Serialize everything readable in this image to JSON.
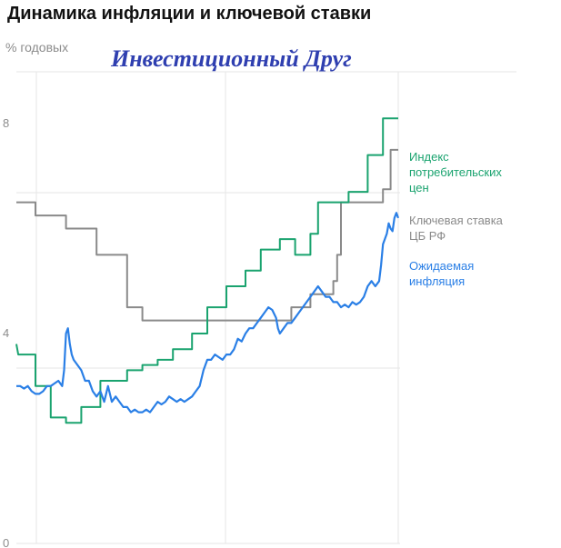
{
  "title": "Динамика инфляции и ключевой ставки",
  "units_label": "% годовых",
  "watermark": "Инвестиционный Друг",
  "colors": {
    "cpi": "#1aa36f",
    "key_rate": "#8a8a8a",
    "expected": "#2a7fe6",
    "grid": "#e6e6e6",
    "tick": "#8c8c8c"
  },
  "chart_data": {
    "type": "line",
    "ylabel": "% годовых",
    "ylim": [
      0,
      10
    ],
    "x_range": [
      0,
      100
    ],
    "yticks": [
      {
        "value": 0,
        "label": "0"
      },
      {
        "value": 4,
        "label": "4"
      },
      {
        "value": 8,
        "label": "8"
      }
    ],
    "grid": true,
    "series": [
      {
        "key": "cpi",
        "name": "Индекс потребительских цен",
        "name_lines": [
          "Индекс",
          "потребительских",
          "цен"
        ],
        "color": "#1aa36f",
        "step": true,
        "points": [
          [
            0,
            3.8
          ],
          [
            0.5,
            3.6
          ],
          [
            5,
            3.6
          ],
          [
            5,
            3.0
          ],
          [
            9,
            3.0
          ],
          [
            9,
            2.4
          ],
          [
            13,
            2.4
          ],
          [
            13,
            2.3
          ],
          [
            17,
            2.3
          ],
          [
            17,
            2.6
          ],
          [
            22,
            2.6
          ],
          [
            22,
            3.1
          ],
          [
            29,
            3.1
          ],
          [
            29,
            3.3
          ],
          [
            33,
            3.3
          ],
          [
            33,
            3.4
          ],
          [
            37,
            3.4
          ],
          [
            37,
            3.5
          ],
          [
            41,
            3.5
          ],
          [
            41,
            3.7
          ],
          [
            46,
            3.7
          ],
          [
            46,
            4.0
          ],
          [
            50,
            4.0
          ],
          [
            50,
            4.5
          ],
          [
            55,
            4.5
          ],
          [
            55,
            4.9
          ],
          [
            60,
            4.9
          ],
          [
            60,
            5.2
          ],
          [
            64,
            5.2
          ],
          [
            64,
            5.6
          ],
          [
            69,
            5.6
          ],
          [
            69,
            5.8
          ],
          [
            73,
            5.8
          ],
          [
            73,
            5.5
          ],
          [
            77,
            5.5
          ],
          [
            77,
            5.9
          ],
          [
            79,
            5.9
          ],
          [
            79,
            6.5
          ],
          [
            87,
            6.5
          ],
          [
            87,
            6.7
          ],
          [
            92,
            6.7
          ],
          [
            92,
            7.4
          ],
          [
            96,
            7.4
          ],
          [
            96,
            8.1
          ],
          [
            100,
            8.1
          ]
        ]
      },
      {
        "key": "key_rate",
        "name": "Ключевая ставка ЦБ РФ",
        "name_lines": [
          "Ключевая ставка",
          "ЦБ РФ"
        ],
        "color": "#8a8a8a",
        "step": true,
        "points": [
          [
            0,
            6.5
          ],
          [
            5,
            6.5
          ],
          [
            5,
            6.25
          ],
          [
            13,
            6.25
          ],
          [
            13,
            6.0
          ],
          [
            21,
            6.0
          ],
          [
            21,
            5.5
          ],
          [
            29,
            5.5
          ],
          [
            29,
            4.5
          ],
          [
            33,
            4.5
          ],
          [
            33,
            4.25
          ],
          [
            67,
            4.25
          ],
          [
            67,
            4.25
          ],
          [
            72,
            4.25
          ],
          [
            72,
            4.5
          ],
          [
            77,
            4.5
          ],
          [
            77,
            4.75
          ],
          [
            83,
            4.75
          ],
          [
            83,
            5.0
          ],
          [
            84,
            5.0
          ],
          [
            84,
            5.5
          ],
          [
            85,
            5.5
          ],
          [
            85,
            6.5
          ],
          [
            96,
            6.5
          ],
          [
            96,
            6.75
          ],
          [
            98,
            6.75
          ],
          [
            98,
            7.5
          ],
          [
            100,
            7.5
          ]
        ]
      },
      {
        "key": "expected",
        "name": "Ожидаемая инфляция",
        "name_lines": [
          "Ожидаемая",
          "инфляция"
        ],
        "color": "#2a7fe6",
        "step": false,
        "points": [
          [
            0,
            3.0
          ],
          [
            1,
            3.0
          ],
          [
            2,
            2.95
          ],
          [
            3,
            3.0
          ],
          [
            4,
            2.9
          ],
          [
            5,
            2.85
          ],
          [
            6,
            2.85
          ],
          [
            7,
            2.9
          ],
          [
            8,
            3.0
          ],
          [
            9,
            3.0
          ],
          [
            10,
            3.05
          ],
          [
            11,
            3.1
          ],
          [
            12,
            3.0
          ],
          [
            12.5,
            3.3
          ],
          [
            13,
            4.0
          ],
          [
            13.5,
            4.1
          ],
          [
            14,
            3.8
          ],
          [
            14.5,
            3.6
          ],
          [
            15,
            3.5
          ],
          [
            16,
            3.4
          ],
          [
            17,
            3.3
          ],
          [
            18,
            3.1
          ],
          [
            19,
            3.1
          ],
          [
            20,
            2.9
          ],
          [
            21,
            2.8
          ],
          [
            22,
            2.9
          ],
          [
            23,
            2.7
          ],
          [
            24,
            3.0
          ],
          [
            25,
            2.7
          ],
          [
            26,
            2.8
          ],
          [
            27,
            2.7
          ],
          [
            28,
            2.6
          ],
          [
            29,
            2.6
          ],
          [
            30,
            2.5
          ],
          [
            31,
            2.55
          ],
          [
            32,
            2.5
          ],
          [
            33,
            2.5
          ],
          [
            34,
            2.55
          ],
          [
            35,
            2.5
          ],
          [
            36,
            2.6
          ],
          [
            37,
            2.7
          ],
          [
            38,
            2.65
          ],
          [
            39,
            2.7
          ],
          [
            40,
            2.8
          ],
          [
            41,
            2.75
          ],
          [
            42,
            2.7
          ],
          [
            43,
            2.75
          ],
          [
            44,
            2.7
          ],
          [
            45,
            2.75
          ],
          [
            46,
            2.8
          ],
          [
            47,
            2.9
          ],
          [
            48,
            3.0
          ],
          [
            49,
            3.3
          ],
          [
            50,
            3.5
          ],
          [
            51,
            3.5
          ],
          [
            52,
            3.6
          ],
          [
            53,
            3.55
          ],
          [
            54,
            3.5
          ],
          [
            55,
            3.6
          ],
          [
            56,
            3.6
          ],
          [
            57,
            3.7
          ],
          [
            58,
            3.9
          ],
          [
            59,
            3.85
          ],
          [
            60,
            4.0
          ],
          [
            61,
            4.1
          ],
          [
            62,
            4.1
          ],
          [
            63,
            4.2
          ],
          [
            64,
            4.3
          ],
          [
            65,
            4.4
          ],
          [
            66,
            4.5
          ],
          [
            67,
            4.45
          ],
          [
            68,
            4.3
          ],
          [
            68.5,
            4.1
          ],
          [
            69,
            4.0
          ],
          [
            70,
            4.1
          ],
          [
            71,
            4.2
          ],
          [
            72,
            4.2
          ],
          [
            73,
            4.3
          ],
          [
            74,
            4.4
          ],
          [
            75,
            4.5
          ],
          [
            76,
            4.6
          ],
          [
            77,
            4.7
          ],
          [
            78,
            4.8
          ],
          [
            79,
            4.9
          ],
          [
            80,
            4.8
          ],
          [
            81,
            4.7
          ],
          [
            82,
            4.7
          ],
          [
            83,
            4.6
          ],
          [
            84,
            4.6
          ],
          [
            85,
            4.5
          ],
          [
            86,
            4.55
          ],
          [
            87,
            4.5
          ],
          [
            88,
            4.6
          ],
          [
            89,
            4.55
          ],
          [
            90,
            4.6
          ],
          [
            91,
            4.7
          ],
          [
            92,
            4.9
          ],
          [
            93,
            5.0
          ],
          [
            94,
            4.9
          ],
          [
            95,
            5.0
          ],
          [
            95.5,
            5.3
          ],
          [
            96,
            5.7
          ],
          [
            97,
            5.9
          ],
          [
            97.5,
            6.1
          ],
          [
            98,
            6.0
          ],
          [
            98.5,
            5.95
          ],
          [
            99,
            6.2
          ],
          [
            99.5,
            6.3
          ],
          [
            100,
            6.2
          ]
        ]
      }
    ]
  }
}
